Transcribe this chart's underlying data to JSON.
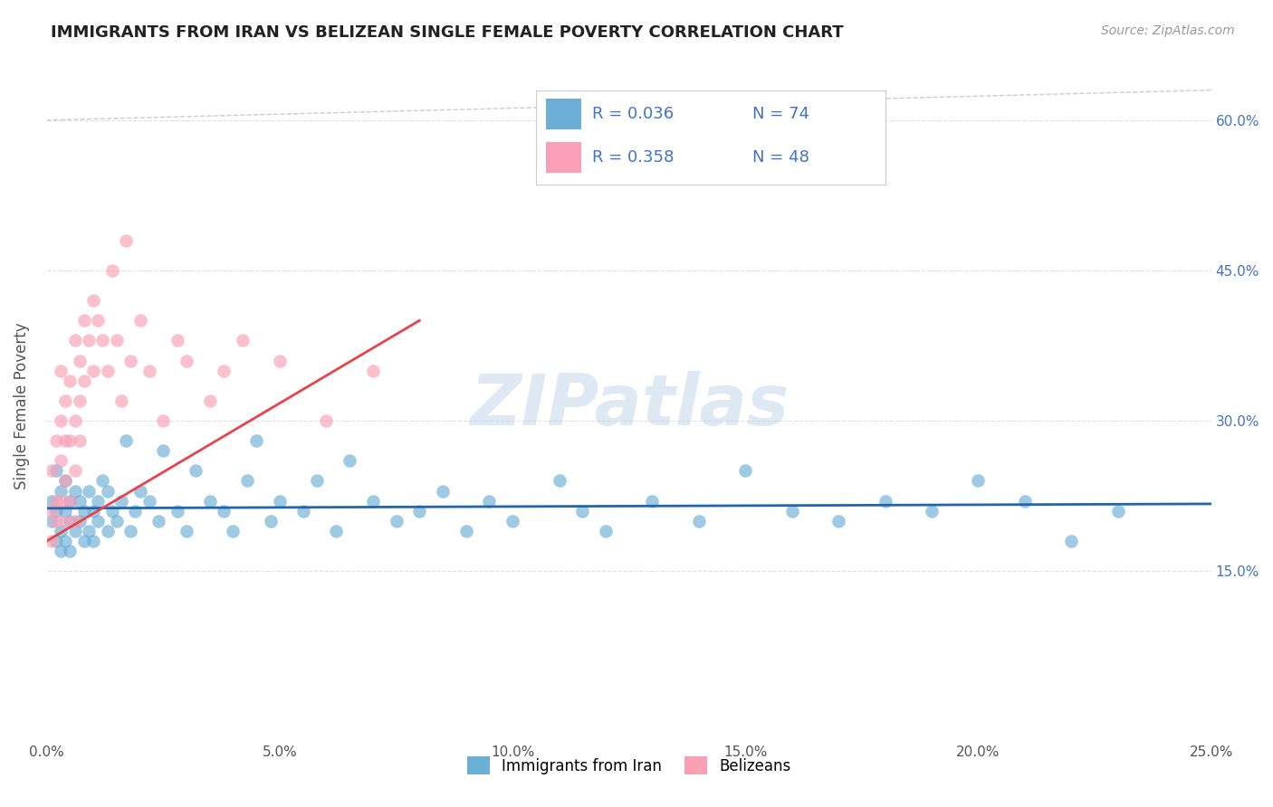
{
  "title": "IMMIGRANTS FROM IRAN VS BELIZEAN SINGLE FEMALE POVERTY CORRELATION CHART",
  "source_text": "Source: ZipAtlas.com",
  "ylabel": "Single Female Poverty",
  "xlim": [
    0.0,
    0.25
  ],
  "ylim": [
    -0.02,
    0.65
  ],
  "watermark": "ZIPatlas",
  "color_iran": "#6baed6",
  "color_belizean": "#fa9fb5",
  "trendline_iran_color": "#2166ac",
  "trendline_belizean_color": "#e8424a",
  "background_color": "#ffffff",
  "grid_color": "#e0e0e0",
  "title_color": "#222222",
  "axis_label_color": "#555555",
  "tick_color": "#555555",
  "source_color": "#999999",
  "right_tick_color": "#4472c4",
  "iran_x": [
    0.001,
    0.001,
    0.002,
    0.002,
    0.002,
    0.003,
    0.003,
    0.003,
    0.004,
    0.004,
    0.004,
    0.005,
    0.005,
    0.005,
    0.006,
    0.006,
    0.007,
    0.007,
    0.008,
    0.008,
    0.009,
    0.009,
    0.01,
    0.01,
    0.011,
    0.011,
    0.012,
    0.013,
    0.013,
    0.014,
    0.015,
    0.016,
    0.017,
    0.018,
    0.019,
    0.02,
    0.022,
    0.024,
    0.025,
    0.028,
    0.03,
    0.032,
    0.035,
    0.038,
    0.04,
    0.043,
    0.045,
    0.048,
    0.05,
    0.055,
    0.058,
    0.062,
    0.065,
    0.07,
    0.075,
    0.08,
    0.085,
    0.09,
    0.095,
    0.1,
    0.11,
    0.115,
    0.12,
    0.13,
    0.14,
    0.15,
    0.16,
    0.17,
    0.18,
    0.19,
    0.2,
    0.21,
    0.22,
    0.23
  ],
  "iran_y": [
    0.22,
    0.2,
    0.25,
    0.21,
    0.18,
    0.23,
    0.19,
    0.17,
    0.21,
    0.18,
    0.24,
    0.2,
    0.22,
    0.17,
    0.19,
    0.23,
    0.2,
    0.22,
    0.18,
    0.21,
    0.19,
    0.23,
    0.21,
    0.18,
    0.22,
    0.2,
    0.24,
    0.19,
    0.23,
    0.21,
    0.2,
    0.22,
    0.28,
    0.19,
    0.21,
    0.23,
    0.22,
    0.2,
    0.27,
    0.21,
    0.19,
    0.25,
    0.22,
    0.21,
    0.19,
    0.24,
    0.28,
    0.2,
    0.22,
    0.21,
    0.24,
    0.19,
    0.26,
    0.22,
    0.2,
    0.21,
    0.23,
    0.19,
    0.22,
    0.2,
    0.24,
    0.21,
    0.19,
    0.22,
    0.2,
    0.25,
    0.21,
    0.2,
    0.22,
    0.21,
    0.24,
    0.22,
    0.18,
    0.21
  ],
  "bel_x": [
    0.001,
    0.001,
    0.001,
    0.002,
    0.002,
    0.002,
    0.003,
    0.003,
    0.003,
    0.003,
    0.004,
    0.004,
    0.004,
    0.004,
    0.005,
    0.005,
    0.005,
    0.006,
    0.006,
    0.006,
    0.006,
    0.007,
    0.007,
    0.007,
    0.008,
    0.008,
    0.009,
    0.01,
    0.01,
    0.011,
    0.012,
    0.013,
    0.014,
    0.015,
    0.016,
    0.017,
    0.018,
    0.02,
    0.022,
    0.025,
    0.028,
    0.03,
    0.035,
    0.038,
    0.042,
    0.05,
    0.06,
    0.07
  ],
  "bel_y": [
    0.21,
    0.25,
    0.18,
    0.22,
    0.28,
    0.2,
    0.3,
    0.26,
    0.22,
    0.35,
    0.28,
    0.24,
    0.32,
    0.2,
    0.34,
    0.28,
    0.22,
    0.38,
    0.3,
    0.25,
    0.2,
    0.36,
    0.32,
    0.28,
    0.4,
    0.34,
    0.38,
    0.42,
    0.35,
    0.4,
    0.38,
    0.35,
    0.45,
    0.38,
    0.32,
    0.48,
    0.36,
    0.4,
    0.35,
    0.3,
    0.38,
    0.36,
    0.32,
    0.35,
    0.38,
    0.36,
    0.3,
    0.35
  ]
}
